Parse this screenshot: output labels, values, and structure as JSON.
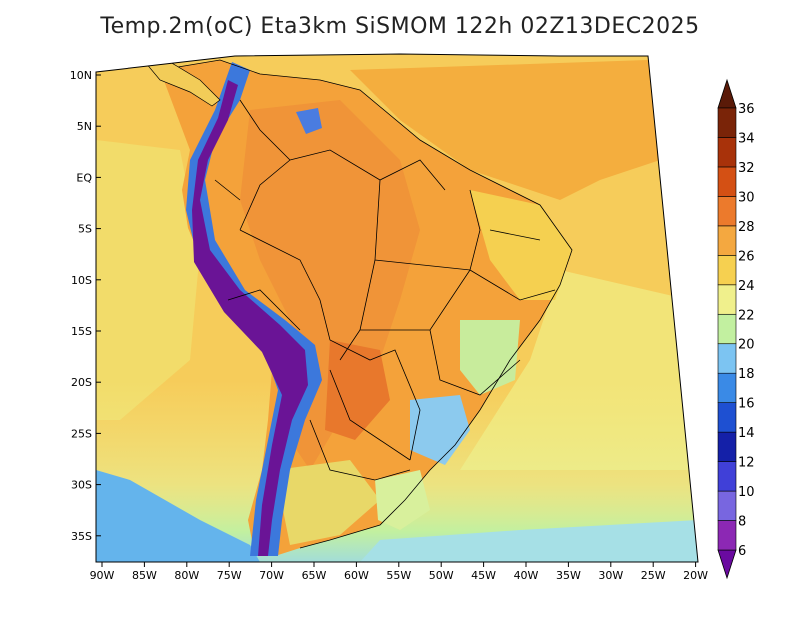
{
  "title": "Temp.2m(oC) Eta3km SiSMOM 122h 02Z13DEC2025",
  "lat_labels": [
    "10N",
    "5N",
    "EQ",
    "5S",
    "10S",
    "15S",
    "20S",
    "25S",
    "30S",
    "35S"
  ],
  "lon_labels": [
    "90W",
    "85W",
    "80W",
    "75W",
    "70W",
    "65W",
    "60W",
    "55W",
    "50W",
    "45W",
    "40W",
    "35W",
    "30W",
    "25W",
    "20W"
  ],
  "colorbar": {
    "labels": [
      "6",
      "8",
      "10",
      "12",
      "14",
      "16",
      "18",
      "20",
      "22",
      "24",
      "26",
      "28",
      "30",
      "32",
      "34",
      "36"
    ],
    "colors": [
      "#6a0aa0",
      "#8c28b4",
      "#7866e0",
      "#4040d8",
      "#1420a8",
      "#1e50d2",
      "#3a8ae6",
      "#7cc4f2",
      "#c2f0a0",
      "#f0f08c",
      "#f6d050",
      "#f4a840",
      "#ec7a2c",
      "#d45014",
      "#a8320a",
      "#7a2408",
      "#5a1a08"
    ]
  },
  "map": {
    "ocean_color": "#f6c14a",
    "land_hot_color": "#f4a23a",
    "andes_cold_color": "#6a1496",
    "south_cool_color": "#c8f0a0"
  }
}
